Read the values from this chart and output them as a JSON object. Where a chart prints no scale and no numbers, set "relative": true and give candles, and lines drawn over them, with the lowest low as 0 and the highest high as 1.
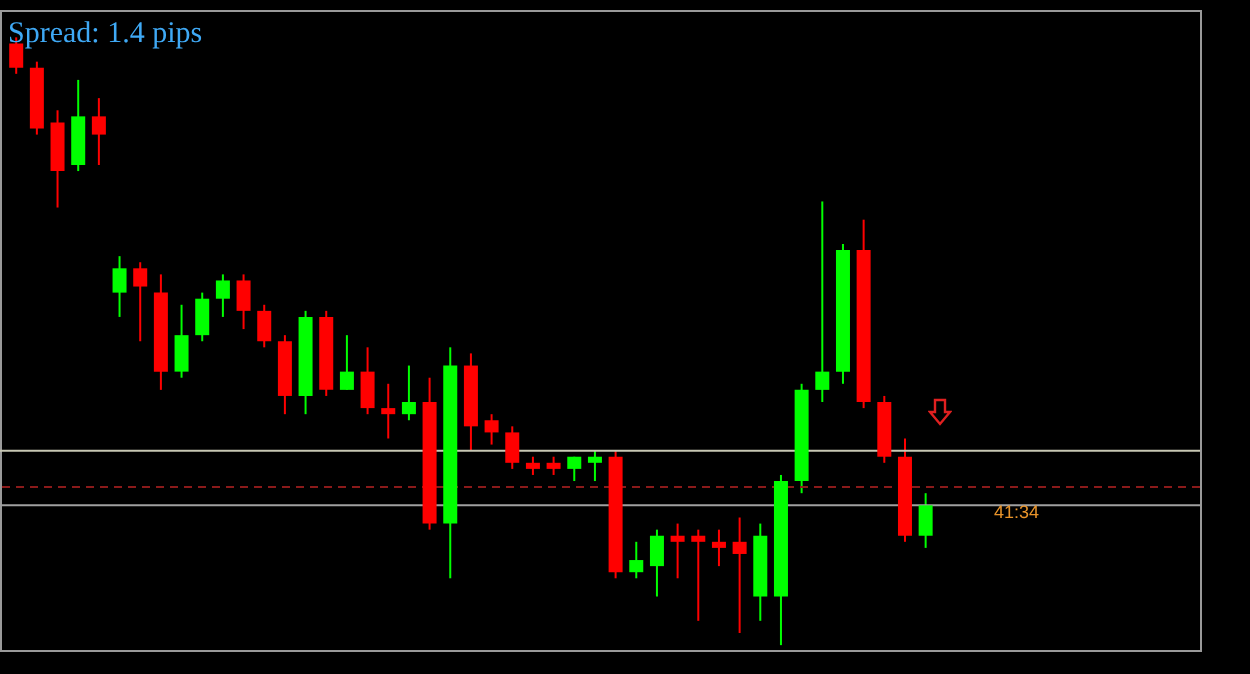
{
  "chart_data": {
    "type": "candlestick",
    "relative": true,
    "annotations": [
      "Spread: 1.4 pips",
      "41:34"
    ],
    "categories": [
      null,
      null,
      null,
      null,
      null,
      null,
      null,
      null,
      null,
      null,
      null,
      null,
      null,
      null,
      null,
      null,
      null,
      null,
      null,
      null,
      null,
      null,
      null,
      null,
      null,
      null,
      null,
      null,
      null,
      null,
      null,
      null,
      null,
      null,
      null,
      null,
      null,
      null,
      null,
      null,
      null,
      null,
      null,
      null,
      null
    ],
    "ohlc": [
      [
        0.99,
        1,
        0.94,
        0.95
      ],
      [
        0.95,
        0.96,
        0.84,
        0.85
      ],
      [
        0.86,
        0.88,
        0.72,
        0.78
      ],
      [
        0.79,
        0.93,
        0.78,
        0.87
      ],
      [
        0.87,
        0.9,
        0.79,
        0.84
      ],
      [
        0.58,
        0.64,
        0.54,
        0.62
      ],
      [
        0.62,
        0.63,
        0.5,
        0.59
      ],
      [
        0.58,
        0.61,
        0.42,
        0.45
      ],
      [
        0.45,
        0.56,
        0.44,
        0.51
      ],
      [
        0.51,
        0.58,
        0.5,
        0.57
      ],
      [
        0.57,
        0.61,
        0.54,
        0.6
      ],
      [
        0.6,
        0.61,
        0.52,
        0.55
      ],
      [
        0.55,
        0.56,
        0.49,
        0.5
      ],
      [
        0.5,
        0.51,
        0.38,
        0.41
      ],
      [
        0.41,
        0.55,
        0.38,
        0.54
      ],
      [
        0.54,
        0.55,
        0.41,
        0.42
      ],
      [
        0.42,
        0.51,
        0.42,
        0.45
      ],
      [
        0.45,
        0.49,
        0.38,
        0.39
      ],
      [
        0.39,
        0.43,
        0.34,
        0.38
      ],
      [
        0.38,
        0.46,
        0.37,
        0.4
      ],
      [
        0.4,
        0.44,
        0.19,
        0.2
      ],
      [
        0.2,
        0.49,
        0.11,
        0.46
      ],
      [
        0.46,
        0.48,
        0.32,
        0.36
      ],
      [
        0.37,
        0.38,
        0.33,
        0.35
      ],
      [
        0.35,
        0.36,
        0.29,
        0.3
      ],
      [
        0.3,
        0.31,
        0.28,
        0.29
      ],
      [
        0.3,
        0.31,
        0.28,
        0.29
      ],
      [
        0.29,
        0.31,
        0.27,
        0.31
      ],
      [
        0.3,
        0.32,
        0.27,
        0.31
      ],
      [
        0.31,
        0.32,
        0.11,
        0.12
      ],
      [
        0.12,
        0.17,
        0.11,
        0.14
      ],
      [
        0.13,
        0.19,
        0.08,
        0.18
      ],
      [
        0.18,
        0.2,
        0.11,
        0.17
      ],
      [
        0.18,
        0.19,
        0.04,
        0.17
      ],
      [
        0.17,
        0.19,
        0.13,
        0.16
      ],
      [
        0.17,
        0.21,
        0.02,
        0.15
      ],
      [
        0.08,
        0.2,
        0.04,
        0.18
      ],
      [
        0.08,
        0.28,
        0,
        0.27
      ],
      [
        0.27,
        0.43,
        0.25,
        0.42
      ],
      [
        0.42,
        0.73,
        0.4,
        0.45
      ],
      [
        0.45,
        0.66,
        0.43,
        0.65
      ],
      [
        0.65,
        0.7,
        0.39,
        0.4
      ],
      [
        0.4,
        0.41,
        0.3,
        0.31
      ],
      [
        0.31,
        0.34,
        0.17,
        0.18
      ],
      [
        0.18,
        0.25,
        0.16,
        0.23
      ]
    ],
    "colors": [
      "#ff0000",
      "#ff0000",
      "#ff0000",
      "#00ff00",
      "#ff0000",
      "#00ff00",
      "#ff0000",
      "#ff0000",
      "#00ff00",
      "#00ff00",
      "#00ff00",
      "#ff0000",
      "#ff0000",
      "#ff0000",
      "#00ff00",
      "#ff0000",
      "#00ff00",
      "#ff0000",
      "#ff0000",
      "#00ff00",
      "#ff0000",
      "#00ff00",
      "#ff0000",
      "#ff0000",
      "#ff0000",
      "#ff0000",
      "#ff0000",
      "#00ff00",
      "#00ff00",
      "#ff0000",
      "#00ff00",
      "#00ff00",
      "#ff0000",
      "#ff0000",
      "#ff0000",
      "#ff0000",
      "#00ff00",
      "#00ff00",
      "#00ff00",
      "#00ff00",
      "#00ff00",
      "#ff0000",
      "#ff0000",
      "#ff0000",
      "#00ff00"
    ],
    "ref_lines": [
      {
        "axis": "y",
        "value": 0.32,
        "color": "#c8c8b4"
      },
      {
        "axis": "y",
        "value": 0.26,
        "color": "#8b1a1a",
        "line_style": "dashed"
      },
      {
        "axis": "y",
        "value": 0.23,
        "color": "#a0a0a0"
      }
    ]
  }
}
